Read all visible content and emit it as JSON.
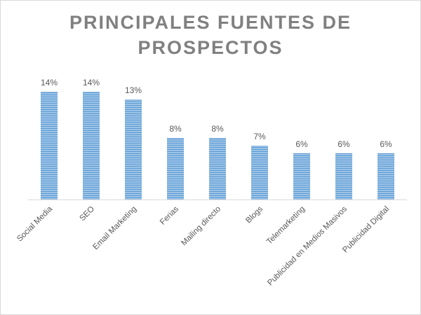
{
  "chart_data": {
    "type": "bar",
    "title_lines": [
      "PRINCIPALES FUENTES DE",
      "PROSPECTOS"
    ],
    "categories": [
      "Social Media",
      "SEO",
      "Email Marketing",
      "Ferias",
      "Mailing directo",
      "Blogs",
      "Telemarketing",
      "Publicidad en Medios Masivos",
      "Publicidad Digital"
    ],
    "values": [
      14,
      14,
      13,
      8,
      8,
      7,
      6,
      6,
      6
    ],
    "data_labels": [
      "14%",
      "14%",
      "13%",
      "8%",
      "8%",
      "7%",
      "6%",
      "6%",
      "6%"
    ],
    "value_unit": "%",
    "ylim": [
      0,
      15
    ],
    "grid": false,
    "legend": "none",
    "bar_color": "#9dc3e6",
    "bar_stripe_color": "#5b9bd5",
    "axis_color": "#d9d9d9",
    "text_color": "#595959",
    "title_color": "#808080"
  }
}
